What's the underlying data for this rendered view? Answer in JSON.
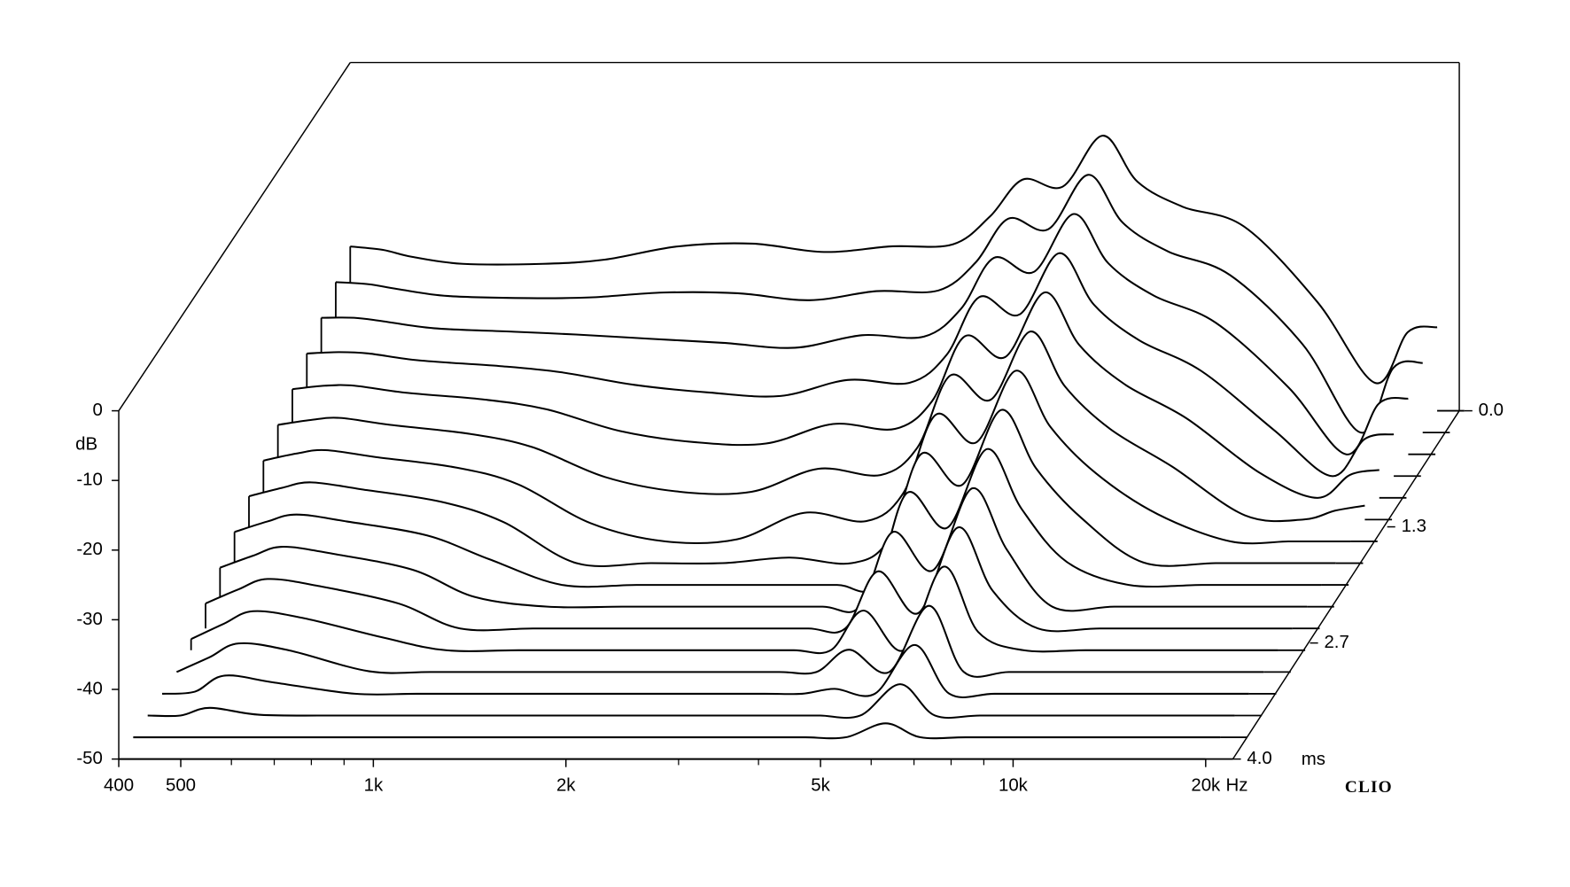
{
  "chart_data": {
    "type": "waterfall",
    "xscale": "log",
    "xlim": [
      400,
      20000
    ],
    "xticks": [
      400,
      500,
      {
        "value": 1000,
        "label": "1k"
      },
      {
        "value": 2000,
        "label": "2k"
      },
      {
        "value": 5000,
        "label": "5k"
      },
      {
        "value": 10000,
        "label": "10k"
      },
      {
        "value": 20000,
        "label": "20k"
      }
    ],
    "xminorticks": [
      600,
      700,
      800,
      900,
      3000,
      4000,
      6000,
      7000,
      8000,
      9000
    ],
    "xlabel": "Hz",
    "ylim": [
      -50,
      0
    ],
    "yticks": [
      0,
      -10,
      -20,
      -30,
      -40,
      -50
    ],
    "ylabel": "dB",
    "zlim": [
      0,
      4
    ],
    "zticks": [
      {
        "value": 0,
        "label": "0.0"
      },
      {
        "value": 1.333,
        "label": "1.3"
      },
      {
        "value": 2.667,
        "label": "2.7"
      },
      {
        "value": 4,
        "label": "4.0"
      }
    ],
    "zlabel": "ms",
    "brand": "CLIO",
    "color": "#000000",
    "x": [
      400,
      450,
      500,
      600,
      800,
      1000,
      1300,
      1700,
      2200,
      2800,
      3500,
      4000,
      4500,
      5200,
      6000,
      6800,
      8000,
      10000,
      13000,
      16000,
      18000,
      20000
    ],
    "z": [
      0,
      0.25,
      0.5,
      0.75,
      1,
      1.25,
      1.5,
      1.75,
      2,
      2.25,
      2.5,
      2.75,
      3,
      3.25,
      3.5,
      3.75,
      4
    ],
    "series": [
      {
        "values": [
          -26.4,
          -26.9,
          -27.9,
          -28.9,
          -28.9,
          -28.3,
          -26.4,
          -26,
          -27.2,
          -26.4,
          -26.1,
          -22.1,
          -16.8,
          -17.8,
          -10.5,
          -17.1,
          -20.7,
          -23.6,
          -34.4,
          -46,
          -38.7,
          -38
        ]
      },
      {
        "values": [
          -28.4,
          -28.7,
          -29.4,
          -30.4,
          -30.7,
          -30.6,
          -29.9,
          -30,
          -31,
          -29.7,
          -29.6,
          -25.6,
          -19.3,
          -20.8,
          -13,
          -19.9,
          -24,
          -27.4,
          -37.4,
          -50,
          -40.7,
          -40
        ]
      },
      {
        "values": [
          -30.4,
          -30.4,
          -30.9,
          -31.9,
          -32.4,
          -32.8,
          -33.4,
          -34,
          -34.7,
          -32.9,
          -33.1,
          -29.1,
          -21.8,
          -23.8,
          -15.5,
          -22.6,
          -27.2,
          -31.1,
          -40.4,
          -50,
          -42.7,
          -42
        ]
      },
      {
        "values": [
          -32.4,
          -32.2,
          -32.4,
          -33.4,
          -34.2,
          -35.1,
          -36.9,
          -38,
          -38.5,
          -36.2,
          -36.6,
          -32.6,
          -24.3,
          -26.8,
          -18,
          -25.4,
          -30.5,
          -34.9,
          -43.4,
          -50,
          -44.7,
          -44
        ]
      },
      {
        "values": [
          -34.4,
          -33.9,
          -33.9,
          -34.9,
          -35.9,
          -37.3,
          -40.4,
          -42,
          -42.2,
          -39.4,
          -40.1,
          -36.1,
          -26.8,
          -29.8,
          -20.5,
          -28.1,
          -33.7,
          -38.6,
          -46.4,
          -50,
          -46.7,
          -46
        ]
      },
      {
        "values": [
          -36.4,
          -35.7,
          -35.4,
          -36.4,
          -37.7,
          -39.6,
          -43.9,
          -46,
          -46,
          -42.7,
          -43.6,
          -39.6,
          -29.3,
          -32.8,
          -23,
          -30.9,
          -37,
          -42.4,
          -49.4,
          -50,
          -48.7,
          -48
        ]
      },
      {
        "values": [
          -38.4,
          -37.4,
          -36.9,
          -37.9,
          -39.4,
          -41.8,
          -47.4,
          -50,
          -49.7,
          -45.9,
          -47.1,
          -43.1,
          -31.8,
          -35.8,
          -25.5,
          -33.6,
          -40.2,
          -46.1,
          -50,
          -50,
          -50,
          -50
        ]
      },
      {
        "values": [
          -40.4,
          -39.2,
          -38.4,
          -39.4,
          -41.2,
          -44.1,
          -50,
          -50,
          -50,
          -49.2,
          -50,
          -46.6,
          -34.3,
          -38.8,
          -28,
          -36.4,
          -43.5,
          -49.9,
          -50,
          -50,
          -50,
          -50
        ]
      },
      {
        "values": [
          -42.4,
          -40.9,
          -39.9,
          -40.9,
          -42.9,
          -46.3,
          -50,
          -50,
          -50,
          -50,
          -50,
          -50,
          -36.8,
          -41.8,
          -30.5,
          -39.1,
          -46.7,
          -50,
          -50,
          -50,
          -50,
          -50
        ]
      },
      {
        "values": [
          -44.4,
          -42.7,
          -41.4,
          -42.4,
          -44.7,
          -48.6,
          -50,
          -50,
          -50,
          -50,
          -50,
          -50,
          -39.3,
          -44.8,
          -33,
          -41.9,
          -50,
          -50,
          -50,
          -50,
          -50,
          -50
        ]
      },
      {
        "values": [
          -46.4,
          -44.4,
          -42.9,
          -43.9,
          -46.4,
          -50,
          -50,
          -50,
          -50,
          -50,
          -50,
          -50,
          -41.8,
          -47.8,
          -35.5,
          -44.6,
          -50,
          -50,
          -50,
          -50,
          -50,
          -50
        ]
      },
      {
        "values": [
          -48.4,
          -46.2,
          -44.4,
          -45.4,
          -48.2,
          -50,
          -50,
          -50,
          -50,
          -50,
          -50,
          -50,
          -44.3,
          -50,
          -38,
          -47.4,
          -50,
          -50,
          -50,
          -50,
          -50,
          -50
        ]
      },
      {
        "values": [
          -50,
          -47.9,
          -45.9,
          -46.9,
          -49.9,
          -50,
          -50,
          -50,
          -50,
          -50,
          -50,
          -50,
          -46.8,
          -50,
          -40.5,
          -50,
          -50,
          -50,
          -50,
          -50,
          -50,
          -50
        ]
      },
      {
        "values": [
          -50,
          -49.7,
          -47.4,
          -48.4,
          -50,
          -50,
          -50,
          -50,
          -50,
          -50,
          -50,
          -50,
          -49.3,
          -50,
          -43,
          -50,
          -50,
          -50,
          -50,
          -50,
          -50,
          -50
        ]
      },
      {
        "values": [
          -50,
          -50,
          -48.9,
          -49.9,
          -50,
          -50,
          -50,
          -50,
          -50,
          -50,
          -50,
          -50,
          -50,
          -50,
          -45.5,
          -50,
          -50,
          -50,
          -50,
          -50,
          -50,
          -50
        ]
      },
      {
        "values": [
          -50,
          -50,
          -50,
          -50,
          -50,
          -50,
          -50,
          -50,
          -50,
          -50,
          -50,
          -50,
          -50,
          -50,
          -48,
          -50,
          -50,
          -50,
          -50,
          -50,
          -50,
          -50
        ]
      },
      {
        "values": [
          -50,
          -50,
          -50,
          -50,
          -50,
          -50,
          -50,
          -50,
          -50,
          -50,
          -50,
          -50,
          -50,
          -50,
          -50,
          -50,
          -50,
          -50,
          -50,
          -50,
          -50,
          -50
        ]
      }
    ]
  }
}
